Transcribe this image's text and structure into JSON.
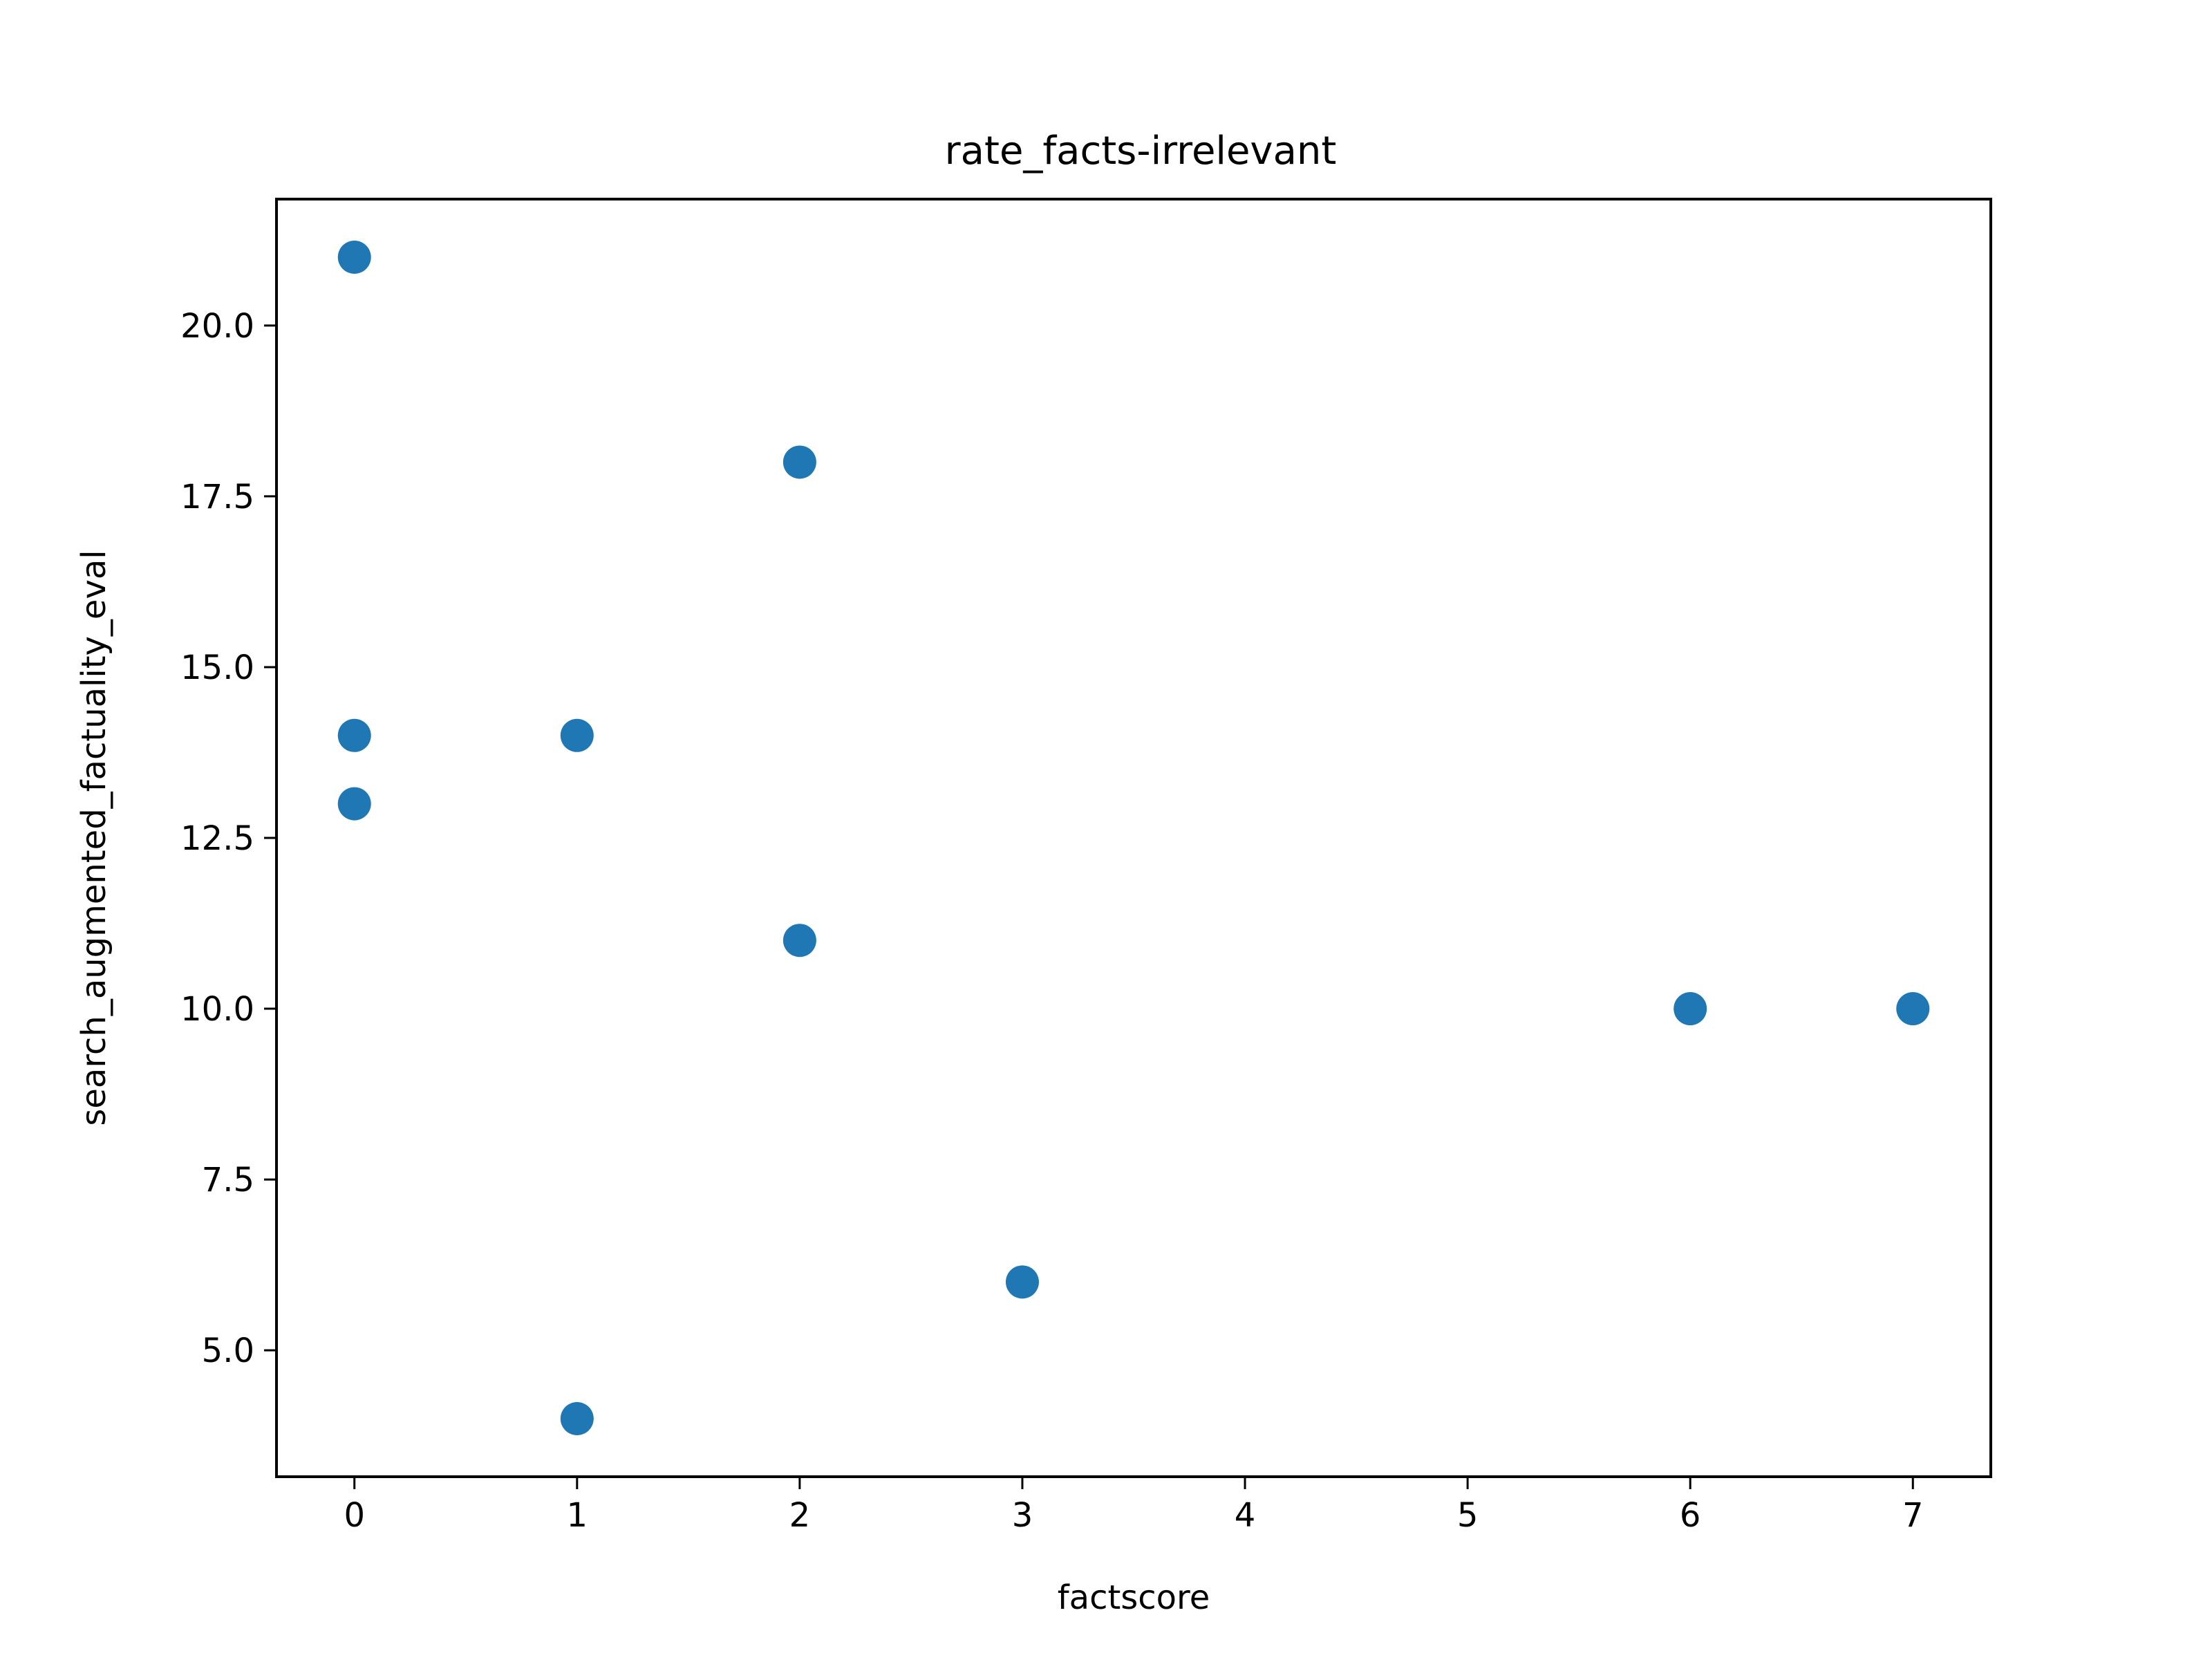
{
  "chart_data": {
    "type": "scatter",
    "title": "rate_facts-irrelevant",
    "xlabel": "factscore",
    "ylabel": "search_augmented_factuality_eval",
    "xlim": [
      -0.35,
      7.35
    ],
    "ylim": [
      3.15,
      21.85
    ],
    "xticks": [
      0,
      1,
      2,
      3,
      4,
      5,
      6,
      7
    ],
    "xtick_labels": [
      "0",
      "1",
      "2",
      "3",
      "4",
      "5",
      "6",
      "7"
    ],
    "yticks": [
      5.0,
      7.5,
      10.0,
      12.5,
      15.0,
      17.5,
      20.0
    ],
    "ytick_labels": [
      "5.0",
      "7.5",
      "10.0",
      "12.5",
      "15.0",
      "17.5",
      "20.0"
    ],
    "grid": false,
    "legend": "none",
    "marker_color": "#1f77b4",
    "points": [
      {
        "x": 0,
        "y": 21
      },
      {
        "x": 0,
        "y": 14
      },
      {
        "x": 0,
        "y": 13
      },
      {
        "x": 1,
        "y": 14
      },
      {
        "x": 1,
        "y": 4
      },
      {
        "x": 2,
        "y": 18
      },
      {
        "x": 2,
        "y": 11
      },
      {
        "x": 3,
        "y": 6
      },
      {
        "x": 6,
        "y": 10
      },
      {
        "x": 7,
        "y": 10
      }
    ]
  }
}
